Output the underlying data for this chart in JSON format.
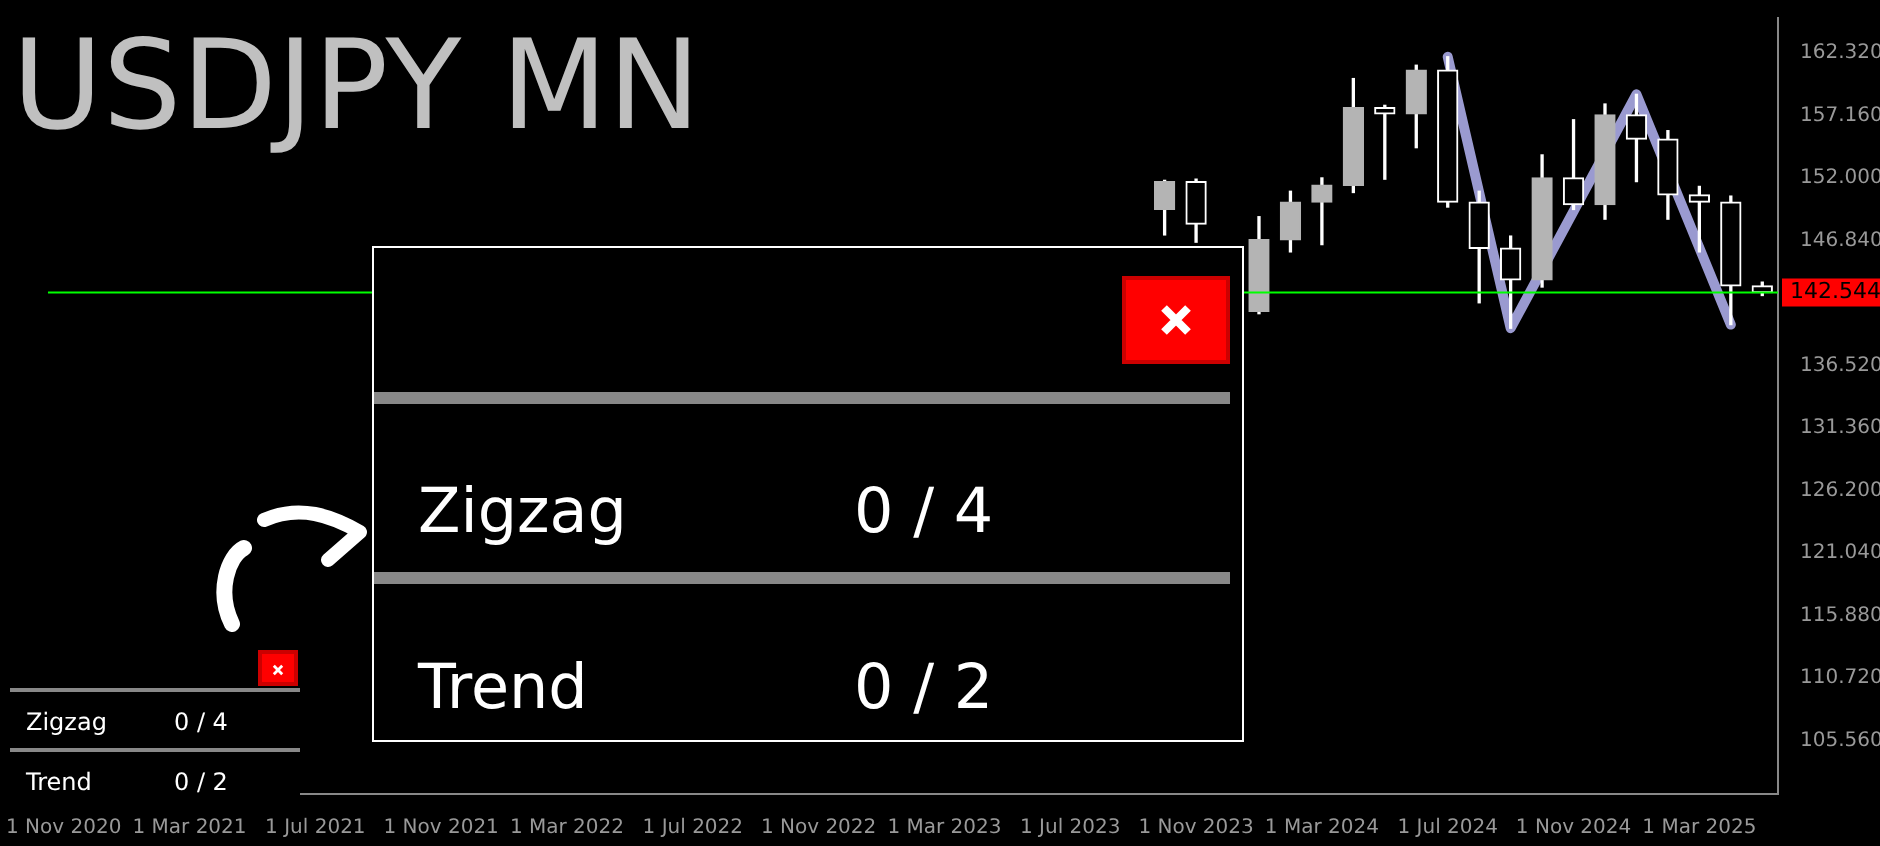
{
  "chart_data": {
    "type": "candlestick",
    "title": "USDJPY MN",
    "categories": [
      "1 Nov 2020",
      null,
      null,
      null,
      "1 Mar 2021",
      null,
      null,
      null,
      "1 Jul 2021",
      null,
      null,
      null,
      "1 Nov 2021",
      null,
      null,
      null,
      "1 Mar 2022",
      null,
      null,
      null,
      "1 Jul 2022",
      null,
      null,
      null,
      "1 Nov 2022",
      null,
      null,
      null,
      "1 Mar 2023",
      null,
      null,
      null,
      "1 Jul 2023",
      null,
      null,
      null,
      "1 Nov 2023",
      null,
      null,
      null,
      "1 Mar 2024",
      null,
      null,
      null,
      "1 Jul 2024",
      null,
      null,
      null,
      "1 Nov 2024",
      null,
      null,
      null,
      "1 Mar 2025",
      null,
      null
    ],
    "ohlc": [
      null,
      null,
      null,
      null,
      null,
      null,
      null,
      null,
      null,
      null,
      null,
      null,
      null,
      null,
      null,
      null,
      null,
      null,
      null,
      null,
      null,
      null,
      null,
      null,
      null,
      null,
      null,
      null,
      null,
      null,
      null,
      null,
      null,
      null,
      null,
      [
        149.4,
        151.8,
        147.3,
        151.7
      ],
      [
        151.7,
        151.9,
        146.7,
        148.2
      ],
      null,
      [
        141.0,
        148.8,
        140.8,
        146.9
      ],
      [
        146.9,
        150.9,
        145.9,
        150.0
      ],
      [
        150.0,
        152.0,
        146.5,
        151.4
      ],
      [
        151.4,
        160.2,
        150.8,
        157.8
      ],
      [
        157.8,
        157.99,
        151.9,
        157.3
      ],
      [
        157.3,
        161.3,
        154.5,
        160.9
      ],
      [
        160.9,
        162.0,
        149.6,
        150.0
      ],
      [
        150.0,
        150.9,
        141.7,
        146.2
      ],
      [
        146.2,
        147.2,
        139.6,
        143.6
      ],
      [
        143.6,
        153.9,
        143.0,
        152.0
      ],
      [
        152.0,
        156.8,
        149.4,
        149.8
      ],
      [
        149.8,
        158.1,
        148.6,
        157.2
      ],
      [
        157.2,
        158.9,
        151.7,
        155.2
      ],
      [
        155.2,
        155.9,
        148.6,
        150.6
      ],
      [
        150.6,
        151.3,
        145.9,
        150.0
      ],
      [
        150.0,
        150.5,
        139.9,
        143.1
      ],
      [
        143.1,
        143.4,
        142.3,
        142.544
      ]
    ],
    "series": [
      {
        "type": "line",
        "color": "#9a9ad0",
        "values": [
          null,
          null,
          null,
          null,
          null,
          null,
          null,
          null,
          null,
          null,
          null,
          null,
          null,
          null,
          null,
          null,
          null,
          null,
          null,
          null,
          null,
          null,
          null,
          null,
          null,
          null,
          null,
          null,
          null,
          null,
          null,
          null,
          null,
          null,
          null,
          null,
          null,
          null,
          null,
          null,
          null,
          null,
          null,
          null,
          162.0,
          null,
          139.6,
          null,
          null,
          null,
          158.9,
          null,
          null,
          139.9,
          null
        ]
      }
    ],
    "ylim": [
      101.16,
      165.2
    ],
    "yticks": [
      {
        "value": 105.56,
        "label": "105.560"
      },
      {
        "value": 110.72,
        "label": "110.720"
      },
      {
        "value": 115.88,
        "label": "115.880"
      },
      {
        "value": 121.04,
        "label": "121.040"
      },
      {
        "value": 126.2,
        "label": "126.200"
      },
      {
        "value": 131.36,
        "label": "131.360"
      },
      {
        "value": 136.52,
        "label": "136.520"
      },
      {
        "value": 146.84,
        "label": "146.840"
      },
      {
        "value": 152,
        "label": "152.000"
      },
      {
        "value": 157.16,
        "label": "157.160"
      },
      {
        "value": 162.32,
        "label": "162.320"
      }
    ],
    "ref_lines": [
      {
        "axis": "y",
        "value": 142.544,
        "label": "142.544",
        "color": "#00ff00"
      }
    ],
    "annotations": [
      "Zigzag",
      "0 / 4",
      "Trend",
      "0 / 2",
      "Zigzag",
      "0 / 4",
      "Trend",
      "0 / 2"
    ],
    "legend": false
  }
}
